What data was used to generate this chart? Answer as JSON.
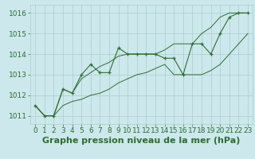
{
  "x": [
    0,
    1,
    2,
    3,
    4,
    5,
    6,
    7,
    8,
    9,
    10,
    11,
    12,
    13,
    14,
    15,
    16,
    17,
    18,
    19,
    20,
    21,
    22,
    23
  ],
  "y_main": [
    1011.5,
    1011.0,
    1011.0,
    1012.3,
    1012.1,
    1013.0,
    1013.5,
    1013.1,
    1013.1,
    1014.3,
    1014.0,
    1014.0,
    1014.0,
    1014.0,
    1013.8,
    1013.8,
    1013.0,
    1014.5,
    1014.5,
    1014.0,
    1015.0,
    1015.8,
    1016.0,
    1016.0
  ],
  "y_min": [
    1011.5,
    1011.0,
    1011.0,
    1011.5,
    1011.7,
    1011.8,
    1012.0,
    1012.1,
    1012.3,
    1012.6,
    1012.8,
    1013.0,
    1013.1,
    1013.3,
    1013.5,
    1013.0,
    1013.0,
    1013.0,
    1013.0,
    1013.2,
    1013.5,
    1014.0,
    1014.5,
    1015.0
  ],
  "y_max": [
    1011.5,
    1011.0,
    1011.0,
    1012.3,
    1012.1,
    1012.8,
    1013.1,
    1013.4,
    1013.6,
    1013.9,
    1014.0,
    1014.0,
    1014.0,
    1014.0,
    1014.2,
    1014.5,
    1014.5,
    1014.5,
    1015.0,
    1015.3,
    1015.8,
    1016.0,
    1016.0,
    1016.0
  ],
  "bg_color": "#cce8ec",
  "grid_color": "#aacccc",
  "line_color": "#2d6e2d",
  "title": "Graphe pression niveau de la mer (hPa)",
  "ylabel_ticks": [
    1011,
    1012,
    1013,
    1014,
    1015,
    1016
  ],
  "ylim": [
    1010.6,
    1016.4
  ],
  "xlim": [
    -0.5,
    23.5
  ],
  "title_fontsize": 8,
  "tick_fontsize": 6.5
}
